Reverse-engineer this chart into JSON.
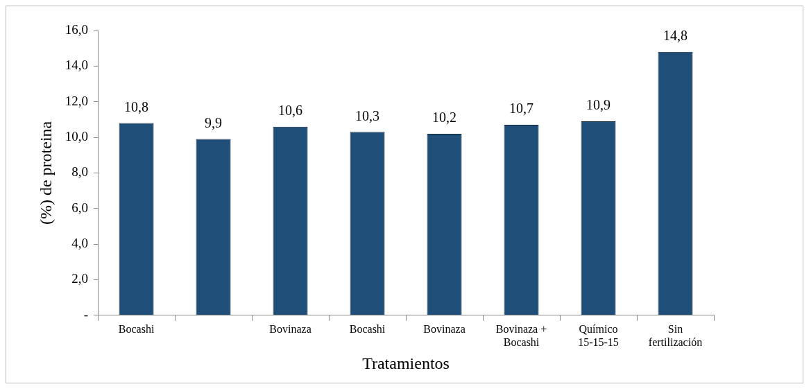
{
  "chart_data": {
    "type": "bar",
    "xlabel": "Tratamientos",
    "ylabel": "(%) de proteina",
    "categories": [
      "Bocashi",
      null,
      "Bovinaza",
      "Bocashi",
      "Bovinaza",
      "Bovinaza + Bocashi",
      "Químico 15-15-15",
      "Sin fertilización"
    ],
    "values": [
      10.8,
      9.9,
      10.6,
      10.3,
      10.2,
      10.7,
      10.9,
      14.8
    ],
    "value_labels": [
      "10,8",
      "9,9",
      "10,6",
      "10,3",
      "10,2",
      "10,7",
      "10,9",
      "14,8"
    ],
    "color": "#1f4e79",
    "ylim": [
      0,
      16
    ],
    "yticks": [
      {
        "value": 0,
        "label": "-"
      },
      {
        "value": 2,
        "label": "2,0"
      },
      {
        "value": 4,
        "label": "4,0"
      },
      {
        "value": 6,
        "label": "6,0"
      },
      {
        "value": 8,
        "label": "8,0"
      },
      {
        "value": 10,
        "label": "10,0"
      },
      {
        "value": 12,
        "label": "12,0"
      },
      {
        "value": 14,
        "label": "14,0"
      },
      {
        "value": 16,
        "label": "16,0"
      }
    ],
    "grid": false,
    "legend": false
  }
}
